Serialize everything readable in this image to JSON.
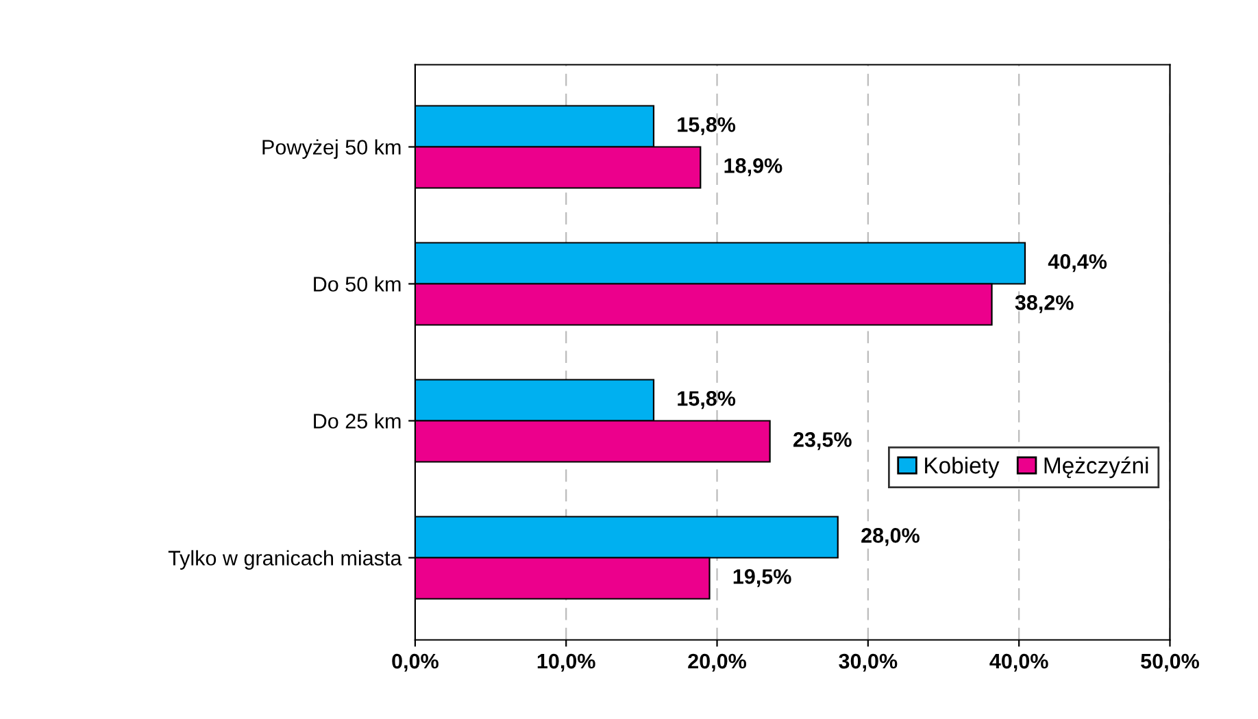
{
  "chart_data": {
    "type": "bar",
    "orientation": "horizontal",
    "categories": [
      "Powyżej 50 km",
      "Do 50 km",
      "Do 25 km",
      "Tylko w granicach miasta"
    ],
    "series": [
      {
        "name": "Kobiety",
        "color": "#00b0f0",
        "values": [
          15.8,
          40.4,
          15.8,
          28.0
        ],
        "value_labels": [
          "15,8%",
          "40,4%",
          "15,8%",
          "28,0%"
        ]
      },
      {
        "name": "Mężczyźni",
        "color": "#ec008c",
        "values": [
          18.9,
          38.2,
          23.5,
          19.5
        ],
        "value_labels": [
          "18,9%",
          "38,2%",
          "23,5%",
          "19,5%"
        ]
      }
    ],
    "xlim": [
      0,
      50
    ],
    "xticks": [
      {
        "value": 0,
        "label": "0,0%"
      },
      {
        "value": 10,
        "label": "10,0%"
      },
      {
        "value": 20,
        "label": "20,0%"
      },
      {
        "value": 30,
        "label": "30,0%"
      },
      {
        "value": 40,
        "label": "40,0%"
      },
      {
        "value": 50,
        "label": "50,0%"
      }
    ],
    "grid": "x",
    "legend": "right"
  }
}
